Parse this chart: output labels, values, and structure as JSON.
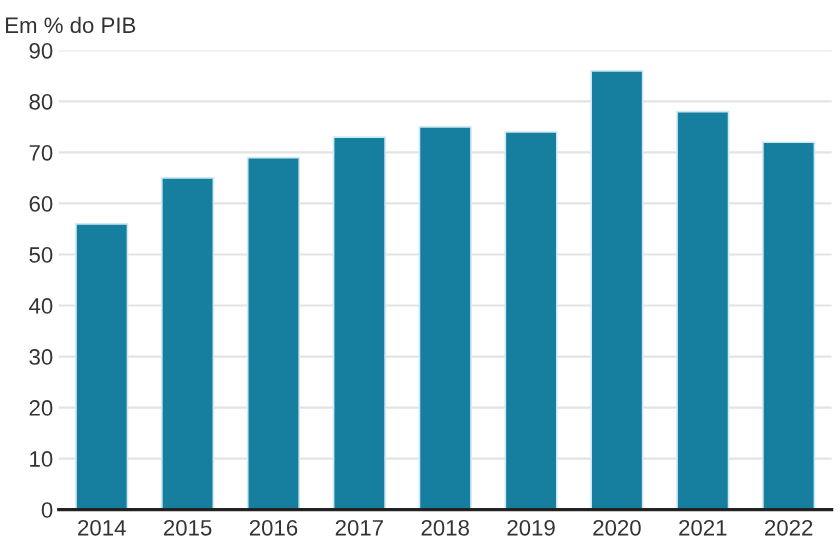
{
  "chart_data": {
    "type": "bar",
    "ylabel": "Em % do PIB",
    "categories": [
      "2014",
      "2015",
      "2016",
      "2017",
      "2018",
      "2019",
      "2020",
      "2021",
      "2022"
    ],
    "values": [
      56,
      65,
      69,
      73,
      75,
      74,
      86,
      78,
      72
    ],
    "color": "#167e9e",
    "ylim": [
      0,
      90
    ],
    "yticks": [
      0,
      10,
      20,
      30,
      40,
      50,
      60,
      70,
      80,
      90
    ],
    "grid": "y"
  }
}
